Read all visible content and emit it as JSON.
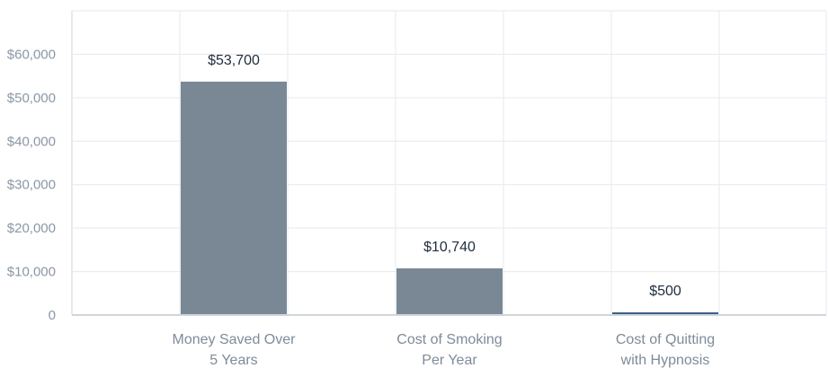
{
  "chart_data": {
    "type": "bar",
    "categories": [
      [
        "Money Saved Over",
        "5 Years"
      ],
      [
        "Cost of Smoking",
        "Per Year"
      ],
      [
        "Cost of Quitting",
        "with Hypnosis"
      ]
    ],
    "values": [
      53700,
      10740,
      500
    ],
    "value_labels": [
      "$53,700",
      "$10,740",
      "$500"
    ],
    "y_ticks": [
      0,
      10000,
      20000,
      30000,
      40000,
      50000,
      60000
    ],
    "y_tick_labels": [
      "0",
      "$10,000",
      "$20,000",
      "$30,000",
      "$40,000",
      "$50,000",
      "$60,000"
    ],
    "ylim": [
      0,
      70000
    ],
    "grid": true,
    "title": "",
    "xlabel": "",
    "ylabel": "",
    "colors": {
      "bar_default": "#7a8896",
      "bar_highlight": "#3b5f86",
      "grid": "#e6e9ed",
      "axis": "#d0d5da",
      "tick_text": "#8a97a6",
      "category_text": "#7e8b99",
      "value_text": "#1f2d3d"
    },
    "bar_colors": [
      "#7a8896",
      "#7a8896",
      "#3b5f86"
    ]
  }
}
